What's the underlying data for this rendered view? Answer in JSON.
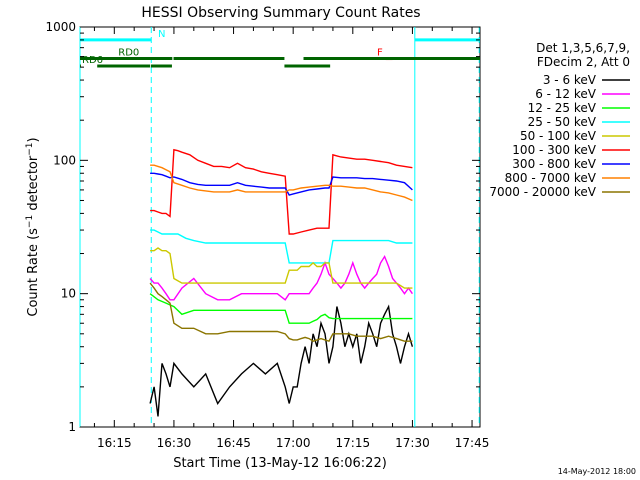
{
  "chart_data": {
    "type": "line",
    "title": "HESSI Observing Summary Count Rates",
    "xlabel": "Start Time (13-May-12 16:06:22)",
    "ylabel": "Count Rate (s-1 detector-1)",
    "ylabel_parts": {
      "main": "Count Rate (s",
      "exp1": "−1",
      "mid": " detector",
      "exp2": "−1",
      "end": ")"
    },
    "y_scale": "log",
    "xlim_min": [
      6.37,
      107.0
    ],
    "ylim": [
      1,
      1000
    ],
    "x_ticks": [
      {
        "min": 15,
        "label": "16:15"
      },
      {
        "min": 30,
        "label": "16:30"
      },
      {
        "min": 45,
        "label": "16:45"
      },
      {
        "min": 60,
        "label": "17:00"
      },
      {
        "min": 75,
        "label": "17:15"
      },
      {
        "min": 90,
        "label": "17:30"
      },
      {
        "min": 105,
        "label": "17:45"
      }
    ],
    "y_tick_labels": [
      {
        "value": 1,
        "label": "1"
      },
      {
        "value": 10,
        "label": "10"
      },
      {
        "value": 100,
        "label": "100"
      },
      {
        "value": 1000,
        "label": "1000"
      }
    ],
    "legend_header": [
      "Det 1,3,5,6,7,9,",
      "FDecim 2, Att 0"
    ],
    "series": [
      {
        "name": "3 - 6 keV",
        "color": "#000000",
        "x": [
          24,
          25,
          26,
          27,
          28,
          29,
          30,
          32,
          35,
          38,
          41,
          44,
          47,
          50,
          53,
          56,
          58,
          59,
          60,
          61,
          62,
          63,
          64,
          65,
          66,
          67,
          68,
          69,
          70,
          71,
          72,
          73,
          74,
          75,
          76,
          77,
          78,
          79,
          80,
          81,
          82,
          83,
          84,
          85,
          86,
          87,
          88,
          89,
          90
        ],
        "y": [
          1.5,
          2,
          1.2,
          3,
          2.5,
          2,
          3,
          2.5,
          2,
          2.5,
          1.5,
          2,
          2.5,
          3,
          2.5,
          3,
          2,
          1.5,
          2,
          2,
          3,
          4,
          3,
          5,
          4,
          6,
          5,
          3,
          4,
          8,
          6,
          4,
          5,
          4,
          5,
          3,
          4,
          6,
          5,
          4,
          6,
          7,
          8,
          5,
          4,
          3,
          4,
          5,
          4
        ]
      },
      {
        "name": "6 - 12 keV",
        "color": "#ff00ff",
        "x": [
          24,
          25,
          26,
          27,
          28,
          29,
          30,
          32,
          35,
          38,
          41,
          44,
          47,
          50,
          53,
          56,
          58,
          59,
          60,
          61,
          62,
          63,
          64,
          65,
          66,
          67,
          68,
          69,
          70,
          71,
          72,
          73,
          74,
          75,
          76,
          77,
          78,
          79,
          80,
          81,
          82,
          83,
          84,
          85,
          86,
          87,
          88,
          89,
          90
        ],
        "y": [
          13,
          12,
          12,
          11,
          10,
          9,
          9,
          11,
          13,
          10,
          9,
          9,
          10,
          10,
          10,
          10,
          9,
          10,
          10,
          10,
          10,
          10,
          10,
          11,
          12,
          14,
          17,
          14,
          13,
          12,
          11,
          12,
          14,
          17,
          14,
          12,
          11,
          12,
          13,
          14,
          17,
          19,
          16,
          13,
          12,
          11,
          10,
          11,
          10
        ]
      },
      {
        "name": "12 - 25 keV",
        "color": "#00ff00",
        "x": [
          24,
          26,
          28,
          30,
          32,
          35,
          38,
          41,
          44,
          47,
          50,
          53,
          56,
          58,
          59,
          60,
          61,
          62,
          63,
          64,
          65,
          66,
          67,
          68,
          69,
          70,
          72,
          74,
          76,
          78,
          80,
          82,
          84,
          86,
          88,
          90
        ],
        "y": [
          10,
          9,
          8.5,
          8,
          7,
          7.5,
          7.5,
          7.5,
          7.5,
          7.5,
          7.5,
          7.5,
          7.5,
          7.5,
          6,
          6,
          6,
          6,
          6,
          6,
          6.2,
          6.4,
          6.8,
          7,
          6.6,
          6.5,
          6.5,
          6.5,
          6.5,
          6.5,
          6.5,
          6.5,
          6.5,
          6.5,
          6.5,
          6.5
        ]
      },
      {
        "name": "25 - 50 keV",
        "color": "#00ffff",
        "x": [
          24,
          25,
          26,
          27,
          28,
          29,
          30,
          31,
          33,
          35,
          38,
          41,
          44,
          47,
          50,
          53,
          56,
          58,
          59,
          60,
          61,
          62,
          63,
          64,
          65,
          66,
          67,
          68,
          69,
          70,
          72,
          74,
          76,
          78,
          80,
          82,
          84,
          86,
          88,
          90
        ],
        "y": [
          30,
          30,
          29,
          28,
          28,
          28,
          28,
          28,
          26,
          25,
          24,
          24,
          24,
          24,
          24,
          24,
          24,
          24,
          17,
          17,
          17,
          17,
          17,
          17,
          17,
          17,
          17,
          17,
          17,
          25,
          25,
          25,
          25,
          25,
          25,
          25,
          25,
          24,
          24,
          24
        ]
      },
      {
        "name": "50 - 100 keV",
        "color": "#ccc800",
        "x": [
          24,
          25,
          26,
          27,
          28,
          29,
          30,
          32,
          35,
          38,
          41,
          44,
          47,
          50,
          53,
          56,
          58,
          59,
          60,
          61,
          62,
          63,
          64,
          65,
          66,
          67,
          68,
          69,
          70,
          72,
          74,
          76,
          78,
          80,
          82,
          84,
          86,
          88,
          90
        ],
        "y": [
          21,
          21,
          22,
          21,
          21,
          20,
          13,
          12,
          12,
          12,
          12,
          12,
          12,
          12,
          12,
          12,
          12,
          15,
          15,
          15,
          16,
          16,
          16,
          17,
          16,
          16,
          17,
          17,
          12,
          12,
          12,
          12,
          12,
          12,
          12,
          12,
          12,
          11,
          11
        ]
      },
      {
        "name": "100 - 300 keV",
        "color": "#ff0000",
        "x": [
          24,
          25,
          26,
          27,
          28,
          29,
          30,
          31,
          32,
          34,
          36,
          38,
          40,
          42,
          44,
          46,
          48,
          50,
          52,
          54,
          56,
          58,
          59,
          60,
          62,
          64,
          66,
          68,
          69,
          70,
          71,
          72,
          74,
          76,
          78,
          80,
          82,
          84,
          86,
          88,
          90
        ],
        "y": [
          42,
          42,
          41,
          40,
          40,
          38,
          120,
          118,
          115,
          110,
          100,
          95,
          90,
          90,
          88,
          95,
          88,
          86,
          82,
          80,
          78,
          76,
          28,
          28,
          29,
          30,
          31,
          31,
          31,
          110,
          108,
          106,
          104,
          102,
          102,
          100,
          98,
          96,
          92,
          90,
          88
        ]
      },
      {
        "name": "300 - 800 keV",
        "color": "#0000ff",
        "x": [
          24,
          25,
          26,
          27,
          28,
          29,
          30,
          32,
          34,
          36,
          38,
          40,
          42,
          44,
          46,
          48,
          50,
          52,
          54,
          56,
          58,
          59,
          60,
          62,
          64,
          66,
          68,
          69,
          70,
          72,
          74,
          76,
          78,
          80,
          82,
          84,
          86,
          88,
          90
        ],
        "y": [
          80,
          80,
          79,
          78,
          76,
          74,
          75,
          72,
          68,
          66,
          65,
          65,
          65,
          65,
          68,
          65,
          64,
          63,
          62,
          62,
          62,
          55,
          56,
          58,
          60,
          61,
          62,
          62,
          75,
          74,
          74,
          74,
          73,
          73,
          72,
          71,
          70,
          68,
          60
        ]
      },
      {
        "name": "800 - 7000 keV",
        "color": "#ff8000",
        "x": [
          24,
          25,
          26,
          27,
          28,
          29,
          30,
          32,
          34,
          36,
          38,
          40,
          42,
          44,
          46,
          48,
          50,
          52,
          54,
          56,
          58,
          59,
          60,
          62,
          64,
          66,
          68,
          69,
          70,
          72,
          74,
          76,
          78,
          80,
          82,
          84,
          86,
          88,
          90
        ],
        "y": [
          92,
          92,
          90,
          88,
          85,
          82,
          68,
          65,
          62,
          60,
          59,
          58,
          58,
          58,
          60,
          58,
          58,
          58,
          58,
          58,
          58,
          60,
          60,
          62,
          63,
          64,
          65,
          65,
          64,
          64,
          63,
          62,
          62,
          60,
          58,
          57,
          55,
          53,
          50
        ]
      },
      {
        "name": "7000 - 20000 keV",
        "color": "#8b7500",
        "x": [
          24,
          25,
          26,
          27,
          28,
          29,
          30,
          32,
          35,
          38,
          41,
          44,
          47,
          50,
          53,
          56,
          58,
          59,
          60,
          61,
          62,
          63,
          64,
          65,
          66,
          67,
          68,
          69,
          70,
          72,
          74,
          76,
          78,
          80,
          82,
          84,
          86,
          88,
          90
        ],
        "y": [
          12,
          11,
          10,
          9.5,
          9,
          8.5,
          6,
          5.5,
          5.5,
          5,
          5,
          5.2,
          5.2,
          5.2,
          5.2,
          5.2,
          5,
          4.6,
          4.5,
          4.5,
          4.6,
          4.7,
          4.6,
          4.4,
          4.5,
          4.6,
          4.5,
          4.4,
          5,
          5,
          5,
          4.8,
          4.8,
          4.8,
          4.6,
          4.8,
          4.6,
          4.4,
          4.4
        ]
      }
    ],
    "intervals": [
      {
        "label": "N",
        "color": "#00ffff",
        "segments": [
          [
            6.37,
            24.3
          ],
          [
            90.6,
            107.0
          ]
        ],
        "level": 800,
        "label_at_min": 25.5
      },
      {
        "label": "F",
        "color": "#ff0000",
        "segments": [
          [
            83.3,
            85.0
          ]
        ],
        "level": 580,
        "label_at_min": 80.6
      },
      {
        "label": "RD0",
        "color": "#006400",
        "segments": [
          [
            6.37,
            29.6
          ],
          [
            29.9,
            57.8
          ],
          [
            62.6,
            107.0
          ]
        ],
        "level": 580,
        "label_at_min": 15.5
      },
      {
        "label": "RD6",
        "color": "#006400",
        "segments": [
          [
            6.37,
            6.6
          ],
          [
            10.7,
            24.0
          ],
          [
            24.2,
            29.5
          ],
          [
            57.8,
            69.3
          ]
        ],
        "level": 510,
        "label_at_min": 6.37
      }
    ],
    "vertical_markers": [
      {
        "min": 6.37,
        "color": "#00ffff",
        "style": "solid"
      },
      {
        "min": 24.3,
        "color": "#00ffff",
        "style": "dashed"
      },
      {
        "min": 90.6,
        "color": "#00ffff",
        "style": "solid"
      },
      {
        "min": 106.8,
        "color": "#00ffff",
        "style": "dashed"
      }
    ],
    "grid": false,
    "legend_position": "right"
  },
  "footer_timestamp": "14-May-2012 18:00"
}
